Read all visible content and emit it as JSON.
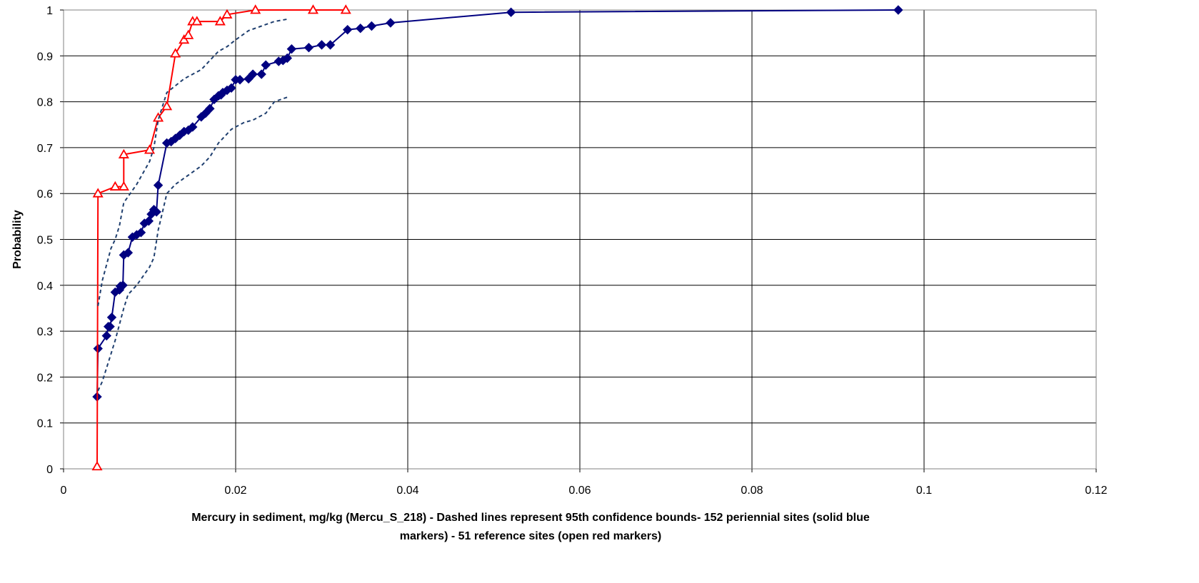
{
  "chart_data": {
    "type": "line",
    "title": "",
    "ylabel": "Probability",
    "xlabel_lines": [
      "Mercury in sediment, mg/kg (Mercu_S_218) - Dashed lines represent 95th confidence bounds- 152 periennial sites (solid blue",
      "markers) - 51 reference sites (open red markers)"
    ],
    "xlim": [
      0,
      0.12
    ],
    "ylim": [
      0,
      1
    ],
    "xticks": [
      0,
      0.02,
      0.04,
      0.06,
      0.08,
      0.1,
      0.12
    ],
    "xtick_labels": [
      "0",
      "0.02",
      "0.04",
      "0.06",
      "0.08",
      "0.1",
      "0.12"
    ],
    "yticks": [
      0,
      0.1,
      0.2,
      0.3,
      0.4,
      0.5,
      0.6,
      0.7,
      0.8,
      0.9,
      1
    ],
    "ytick_labels": [
      "0",
      "0.1",
      "0.2",
      "0.3",
      "0.4",
      "0.5",
      "0.6",
      "0.7",
      "0.8",
      "0.9",
      "1"
    ],
    "grid": true,
    "legend": "none",
    "colors": {
      "perennial": "#000080",
      "reference": "#ff0000",
      "bounds": "#1f3f6f",
      "grid": "#000000",
      "plot_border": "#808080"
    },
    "series": [
      {
        "style": "solid-line-filled-diamond",
        "color": "#000080",
        "x": [
          0.0039,
          0.004,
          0.005,
          0.0052,
          0.0054,
          0.0056,
          0.006,
          0.0065,
          0.0066,
          0.0069,
          0.007,
          0.0075,
          0.008,
          0.0085,
          0.009,
          0.0094,
          0.0099,
          0.0102,
          0.0105,
          0.0108,
          0.011,
          0.012,
          0.0125,
          0.013,
          0.0135,
          0.014,
          0.0145,
          0.015,
          0.016,
          0.0165,
          0.017,
          0.0175,
          0.018,
          0.0183,
          0.0185,
          0.019,
          0.0195,
          0.02,
          0.0205,
          0.0215,
          0.022,
          0.023,
          0.0235,
          0.025,
          0.0255,
          0.026,
          0.0265,
          0.0285,
          0.03,
          0.031,
          0.033,
          0.0345,
          0.0358,
          0.038,
          0.052,
          0.097
        ],
        "y": [
          0.157,
          0.262,
          0.29,
          0.31,
          0.31,
          0.33,
          0.385,
          0.39,
          0.398,
          0.4,
          0.466,
          0.471,
          0.505,
          0.51,
          0.515,
          0.535,
          0.54,
          0.555,
          0.565,
          0.56,
          0.618,
          0.71,
          0.713,
          0.72,
          0.727,
          0.735,
          0.738,
          0.745,
          0.767,
          0.775,
          0.785,
          0.805,
          0.813,
          0.815,
          0.82,
          0.825,
          0.83,
          0.848,
          0.848,
          0.85,
          0.86,
          0.86,
          0.88,
          0.888,
          0.89,
          0.895,
          0.915,
          0.918,
          0.924,
          0.924,
          0.957,
          0.96,
          0.965,
          0.972,
          0.995,
          1.0
        ]
      },
      {
        "style": "solid-line-open-triangle",
        "color": "#ff0000",
        "x": [
          0.0039,
          0.004,
          0.006,
          0.007,
          0.007,
          0.01,
          0.011,
          0.012,
          0.013,
          0.014,
          0.0145,
          0.015,
          0.0155,
          0.0182,
          0.019,
          0.0223,
          0.029,
          0.0328
        ],
        "y": [
          0.005,
          0.6,
          0.615,
          0.615,
          0.685,
          0.695,
          0.765,
          0.79,
          0.905,
          0.935,
          0.945,
          0.975,
          0.975,
          0.975,
          0.99,
          1.0,
          1.0,
          1.0
        ]
      },
      {
        "style": "dashed-bound",
        "color": "#1f3f6f",
        "x": [
          0.004,
          0.0045,
          0.0055,
          0.006,
          0.0065,
          0.007,
          0.0085,
          0.01,
          0.0105,
          0.011,
          0.012,
          0.014,
          0.015,
          0.016,
          0.0175,
          0.018,
          0.019,
          0.02,
          0.0215,
          0.023,
          0.0245,
          0.026
        ],
        "y": [
          0.355,
          0.41,
          0.48,
          0.5,
          0.53,
          0.58,
          0.62,
          0.67,
          0.7,
          0.76,
          0.82,
          0.85,
          0.86,
          0.87,
          0.9,
          0.91,
          0.92,
          0.935,
          0.955,
          0.965,
          0.975,
          0.98
        ]
      },
      {
        "style": "dashed-bound",
        "color": "#1f3f6f",
        "x": [
          0.004,
          0.0045,
          0.0055,
          0.006,
          0.007,
          0.0075,
          0.0085,
          0.01,
          0.0105,
          0.011,
          0.0115,
          0.012,
          0.013,
          0.0145,
          0.016,
          0.017,
          0.018,
          0.0195,
          0.021,
          0.022,
          0.0235,
          0.0245,
          0.026
        ],
        "y": [
          0.17,
          0.19,
          0.25,
          0.28,
          0.35,
          0.38,
          0.4,
          0.44,
          0.46,
          0.52,
          0.56,
          0.6,
          0.62,
          0.64,
          0.66,
          0.68,
          0.71,
          0.74,
          0.755,
          0.76,
          0.775,
          0.8,
          0.81
        ]
      }
    ]
  }
}
